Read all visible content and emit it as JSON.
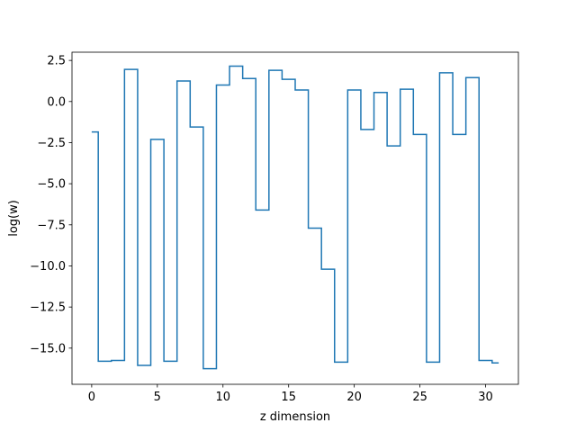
{
  "chart_data": {
    "type": "line",
    "drawstyle": "steps-mid",
    "title": "",
    "xlabel": "z dimension",
    "ylabel": "log(w)",
    "xlim": [
      -1.5,
      32.5
    ],
    "ylim": [
      -17.2,
      3.0
    ],
    "grid": false,
    "legend": "none",
    "line_color": "#1f77b4",
    "x_ticks": [
      0,
      5,
      10,
      15,
      20,
      25,
      30
    ],
    "x_tick_labels": [
      "0",
      "5",
      "10",
      "15",
      "20",
      "25",
      "30"
    ],
    "y_ticks": [
      2.5,
      0.0,
      -2.5,
      -5.0,
      -7.5,
      -10.0,
      -12.5,
      -15.0
    ],
    "y_tick_labels": [
      "2.5",
      "0.0",
      "−2.5",
      "−5.0",
      "−7.5",
      "−10.0",
      "−12.5",
      "−15.0"
    ],
    "series": [
      {
        "x": [
          0,
          1,
          2,
          3,
          4,
          5,
          6,
          7,
          8,
          9,
          10,
          11,
          12,
          13,
          14,
          15,
          16,
          17,
          18,
          19,
          20,
          21,
          22,
          23,
          24,
          25,
          26,
          27,
          28,
          29,
          30,
          31
        ],
        "y": [
          -1.85,
          -15.8,
          -15.75,
          1.95,
          -16.05,
          -2.3,
          -15.8,
          1.25,
          -1.55,
          -16.25,
          1.0,
          2.15,
          1.4,
          -6.6,
          1.9,
          1.35,
          0.7,
          -7.7,
          -10.2,
          -15.85,
          0.7,
          -1.7,
          0.55,
          -2.7,
          0.75,
          -2.0,
          -15.85,
          1.75,
          -2.0,
          1.45,
          -15.75,
          -15.9
        ]
      }
    ]
  }
}
